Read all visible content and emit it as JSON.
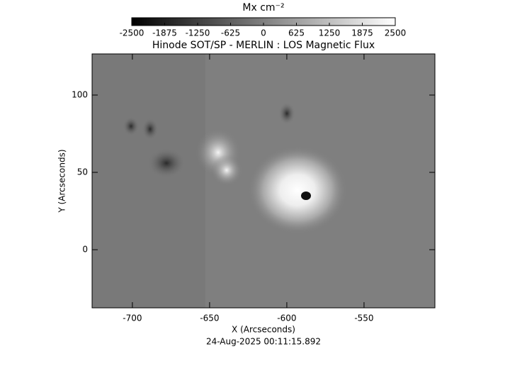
{
  "chart_data": {
    "type": "image",
    "title": "Hinode SOT/SP - MERLIN : LOS Magnetic Flux",
    "x_label": "X (Arcseconds)",
    "y_label": "Y (Arcseconds)",
    "footer": "24-Aug-2025 00:11:15.892",
    "xlim": [
      -726.1,
      -504.1
    ],
    "ylim": [
      -37.6,
      126.6
    ],
    "xticks": [
      -700,
      -650,
      -600,
      -550
    ],
    "yticks": [
      0,
      50,
      100
    ],
    "colorbar": {
      "label": "Mx cm⁻²",
      "lim": [
        -2500,
        2500
      ],
      "ticks": [
        -2500,
        -1875,
        -1250,
        -625,
        0,
        625,
        1250,
        1875,
        2500
      ],
      "colors": [
        "#000000",
        "#ffffff"
      ]
    }
  }
}
